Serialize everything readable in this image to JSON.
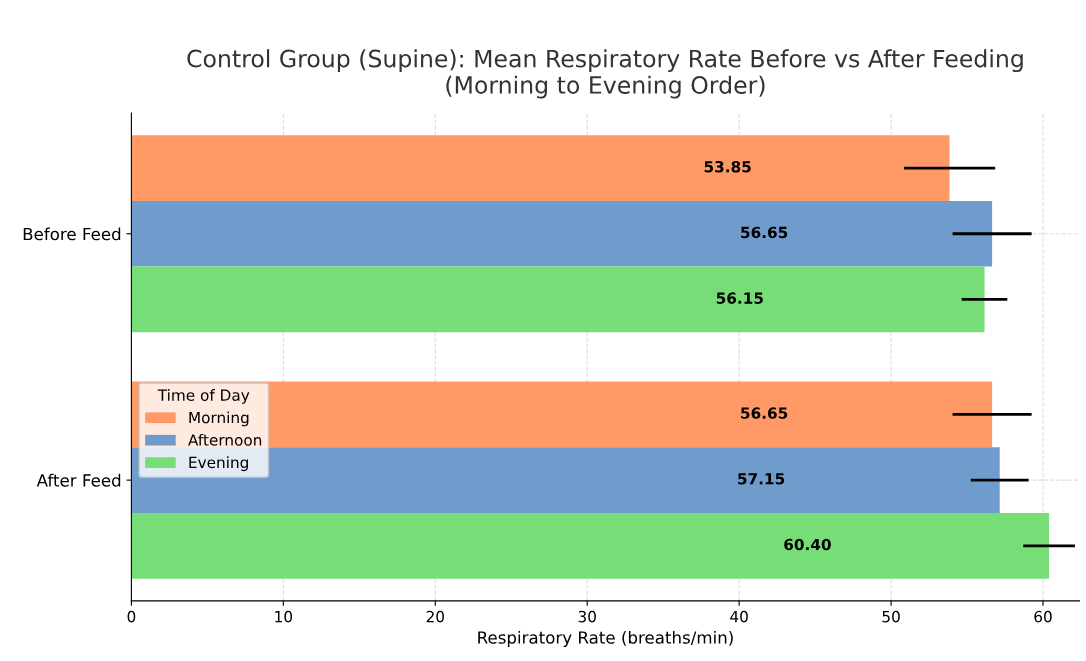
{
  "chart_data": {
    "type": "bar",
    "orientation": "horizontal",
    "title": "Control Group (Supine): Mean Respiratory Rate Before vs After Feeding\n(Morning to Evening Order)",
    "xlabel": "Respiratory Rate (breaths/min)",
    "legend_title": "Time of Day",
    "categories": [
      "Before Feed",
      "After Feed"
    ],
    "series": [
      {
        "name": "Morning",
        "color": "#ff9966",
        "values": [
          53.85,
          56.65
        ],
        "errors": [
          3.0,
          2.6
        ],
        "value_labels": [
          "53.85",
          "56.65"
        ]
      },
      {
        "name": "Afternoon",
        "color": "#6f9ccc",
        "values": [
          56.65,
          57.15
        ],
        "errors": [
          2.6,
          1.9
        ],
        "value_labels": [
          "56.65",
          "57.15"
        ]
      },
      {
        "name": "Evening",
        "color": "#77dd77",
        "values": [
          56.15,
          60.4
        ],
        "errors": [
          1.5,
          1.7
        ],
        "value_labels": [
          "56.15",
          "60.40"
        ]
      }
    ],
    "xlim": [
      0,
      62.4
    ],
    "xticks": [
      0,
      10,
      20,
      30,
      40,
      50,
      60
    ],
    "grid": true,
    "legend": "left"
  }
}
